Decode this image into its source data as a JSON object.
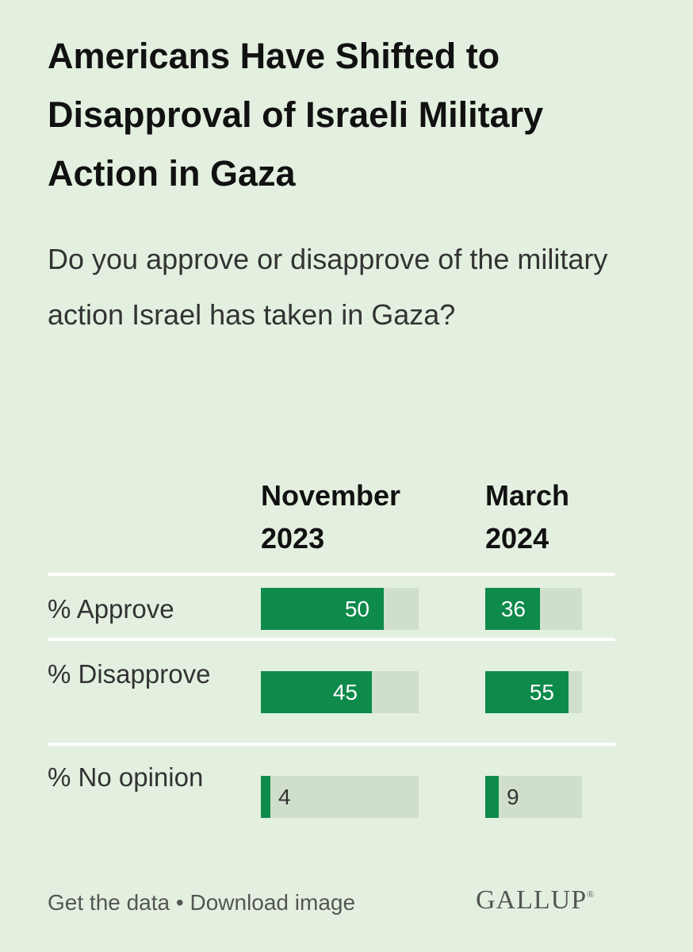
{
  "chart_data": {
    "type": "bar",
    "title": "Americans Have Shifted to Disapproval of Israeli Military Action in Gaza",
    "subtitle": "Do you approve or disapprove of the military action Israel has taken in Gaza?",
    "columns": [
      "November 2023",
      "March 2024"
    ],
    "categories": [
      "% Approve",
      "% Disapprove",
      "% No opinion"
    ],
    "series": [
      {
        "name": "November 2023",
        "values": [
          50,
          45,
          4
        ]
      },
      {
        "name": "March 2024",
        "values": [
          36,
          55,
          9
        ]
      }
    ],
    "ylim": [
      0,
      64
    ],
    "colors": {
      "bar": "#0e8a4b",
      "track": "#cfdfcc",
      "background": "#e3f0e0"
    }
  },
  "footer": {
    "get_data": "Get the data",
    "separator": "•",
    "download": "Download image",
    "logo": "GALLUP"
  }
}
